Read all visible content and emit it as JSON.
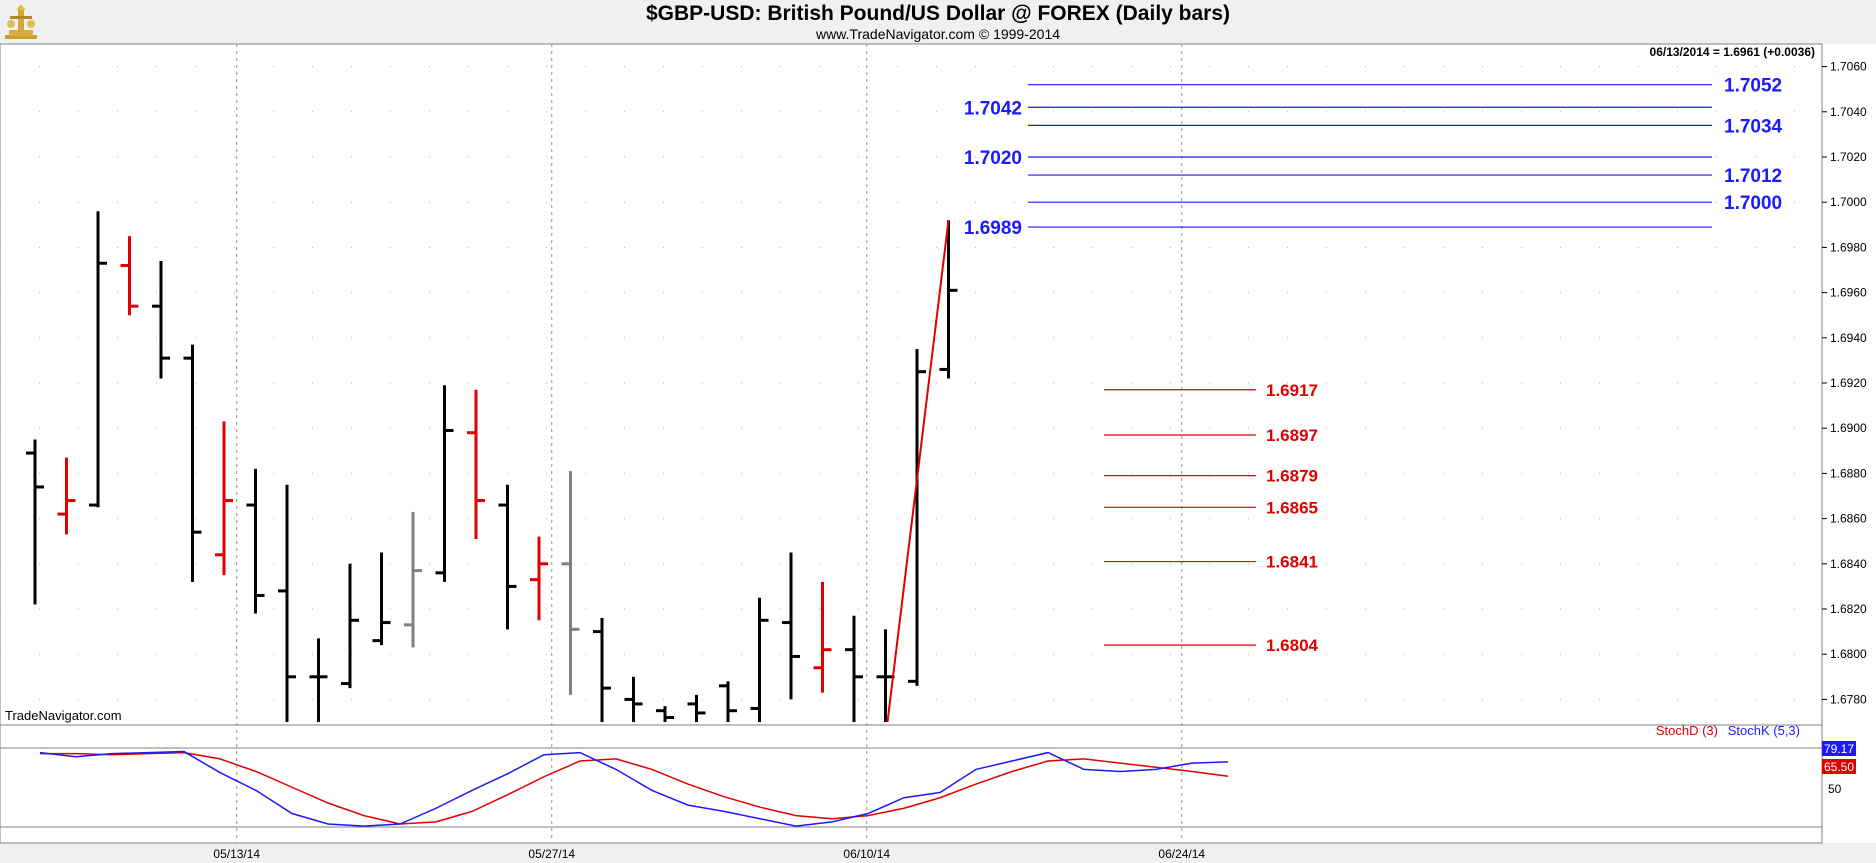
{
  "header": {
    "title": "$GBP-USD:  British Pound/US Dollar @ FOREX  (Daily bars)",
    "subtitle": "www.TradeNavigator.com © 1999-2014"
  },
  "watermark": "TradeNavigator.com",
  "last_price": "06/13/2014 = 1.6961 (+0.0036)",
  "indicator": {
    "stoch_d_label": "StochD (3)",
    "stoch_k_label": "StochK (5,3)",
    "k_value": "79.17",
    "d_value": "65.50",
    "level_label": "50",
    "k_color": "#1a1aff",
    "d_color": "#e00000"
  },
  "colors": {
    "up_bar": "#000000",
    "down_bar": "#e00000",
    "neutral_bar": "#808080",
    "resistance": "#1a1aff",
    "support": "#e00000",
    "background": "#ffffff"
  },
  "chart_data": {
    "type": "ohlc",
    "title": "$GBP-USD:  British Pound/US Dollar @ FOREX  (Daily bars)",
    "ylim": [
      1.677,
      1.707
    ],
    "y_ticks": [
      "1.7060",
      "1.7040",
      "1.7020",
      "1.7000",
      "1.6980",
      "1.6960",
      "1.6940",
      "1.6920",
      "1.6900",
      "1.6880",
      "1.6860",
      "1.6840",
      "1.6820",
      "1.6800",
      "1.6780"
    ],
    "date_labels": [
      {
        "index": 6.5,
        "label": "05/13/14"
      },
      {
        "index": 16.5,
        "label": "05/27/14"
      },
      {
        "index": 26.5,
        "label": "06/10/14"
      },
      {
        "index": 36.5,
        "label": "06/24/14"
      }
    ],
    "bars": [
      {
        "o": 1.6889,
        "h": 1.6895,
        "l": 1.6822,
        "c": 1.6874,
        "col": "black"
      },
      {
        "o": 1.6862,
        "h": 1.6887,
        "l": 1.6853,
        "c": 1.6868,
        "col": "red"
      },
      {
        "o": 1.6866,
        "h": 1.6996,
        "l": 1.6865,
        "c": 1.6973,
        "col": "black"
      },
      {
        "o": 1.6972,
        "h": 1.6985,
        "l": 1.695,
        "c": 1.6954,
        "col": "red"
      },
      {
        "o": 1.6954,
        "h": 1.6974,
        "l": 1.6922,
        "c": 1.6931,
        "col": "black"
      },
      {
        "o": 1.6931,
        "h": 1.6937,
        "l": 1.6832,
        "c": 1.6854,
        "col": "black"
      },
      {
        "o": 1.6844,
        "h": 1.6903,
        "l": 1.6835,
        "c": 1.6868,
        "col": "red"
      },
      {
        "o": 1.6866,
        "h": 1.6882,
        "l": 1.6818,
        "c": 1.6826,
        "col": "black"
      },
      {
        "o": 1.6828,
        "h": 1.6875,
        "l": 1.677,
        "c": 1.679,
        "col": "black"
      },
      {
        "o": 1.679,
        "h": 1.6807,
        "l": 1.677,
        "c": 1.679,
        "col": "black"
      },
      {
        "o": 1.6787,
        "h": 1.684,
        "l": 1.6785,
        "c": 1.6815,
        "col": "black"
      },
      {
        "o": 1.6806,
        "h": 1.6845,
        "l": 1.6804,
        "c": 1.6814,
        "col": "black"
      },
      {
        "o": 1.6813,
        "h": 1.6863,
        "l": 1.6803,
        "c": 1.6837,
        "col": "gray"
      },
      {
        "o": 1.6836,
        "h": 1.6919,
        "l": 1.6832,
        "c": 1.6899,
        "col": "black"
      },
      {
        "o": 1.6898,
        "h": 1.6917,
        "l": 1.6851,
        "c": 1.6868,
        "col": "red"
      },
      {
        "o": 1.6866,
        "h": 1.6875,
        "l": 1.6811,
        "c": 1.683,
        "col": "black"
      },
      {
        "o": 1.6833,
        "h": 1.6852,
        "l": 1.6815,
        "c": 1.684,
        "col": "red"
      },
      {
        "o": 1.684,
        "h": 1.6881,
        "l": 1.6782,
        "c": 1.6811,
        "col": "gray"
      },
      {
        "o": 1.681,
        "h": 1.6816,
        "l": 1.677,
        "c": 1.6785,
        "col": "black"
      },
      {
        "o": 1.678,
        "h": 1.679,
        "l": 1.677,
        "c": 1.6778,
        "col": "black"
      },
      {
        "o": 1.6775,
        "h": 1.6777,
        "l": 1.677,
        "c": 1.6772,
        "col": "black"
      },
      {
        "o": 1.6778,
        "h": 1.6782,
        "l": 1.677,
        "c": 1.6774,
        "col": "black"
      },
      {
        "o": 1.6786,
        "h": 1.6788,
        "l": 1.677,
        "c": 1.6775,
        "col": "black"
      },
      {
        "o": 1.6776,
        "h": 1.6825,
        "l": 1.677,
        "c": 1.6815,
        "col": "black"
      },
      {
        "o": 1.6814,
        "h": 1.6845,
        "l": 1.678,
        "c": 1.6799,
        "col": "black"
      },
      {
        "o": 1.6794,
        "h": 1.6832,
        "l": 1.6783,
        "c": 1.6802,
        "col": "red"
      },
      {
        "o": 1.6802,
        "h": 1.6817,
        "l": 1.677,
        "c": 1.679,
        "col": "black"
      },
      {
        "o": 1.679,
        "h": 1.6811,
        "l": 1.677,
        "c": 1.679,
        "col": "black"
      },
      {
        "o": 1.6788,
        "h": 1.6935,
        "l": 1.6786,
        "c": 1.6925,
        "col": "black"
      },
      {
        "o": 1.6926,
        "h": 1.6992,
        "l": 1.6922,
        "c": 1.6961,
        "col": "black"
      }
    ],
    "resistance_left": [
      "1.7042",
      "1.7020",
      "1.6989"
    ],
    "resistance_right": [
      "1.7052",
      "1.7034",
      "1.7012",
      "1.7000"
    ],
    "resistance_values": [
      1.7052,
      1.7042,
      1.7034,
      1.702,
      1.7012,
      1.7,
      1.6989
    ],
    "support": [
      {
        "value": 1.6917,
        "label": "1.6917"
      },
      {
        "value": 1.6897,
        "label": "1.6897"
      },
      {
        "value": 1.6879,
        "label": "1.6879"
      },
      {
        "value": 1.6865,
        "label": "1.6865"
      },
      {
        "value": 1.6841,
        "label": "1.6841"
      },
      {
        "value": 1.6804,
        "label": "1.6804"
      }
    ],
    "trendline": {
      "from": [
        27.0,
        1.6765
      ],
      "to": [
        29.0,
        1.6992
      ]
    },
    "stoch_k": [
      88,
      84,
      87,
      88,
      89,
      69,
      52,
      30,
      20,
      18,
      20,
      35,
      52,
      68,
      86,
      88,
      72,
      52,
      38,
      32,
      25,
      18,
      22,
      30,
      45,
      50,
      72,
      80,
      88,
      72,
      70,
      72,
      78,
      79.17
    ],
    "stoch_d": [
      87,
      87,
      86,
      87,
      88,
      82,
      70,
      55,
      40,
      28,
      20,
      22,
      32,
      48,
      65,
      80,
      82,
      72,
      58,
      46,
      36,
      28,
      25,
      28,
      35,
      45,
      58,
      70,
      80,
      82,
      78,
      74,
      70,
      65.5
    ]
  }
}
